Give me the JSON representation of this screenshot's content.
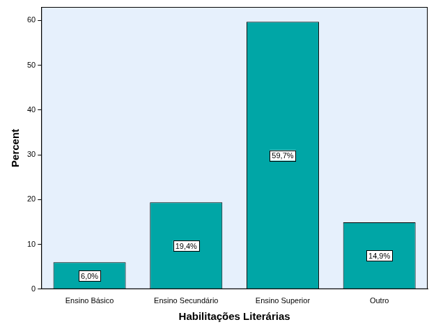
{
  "chart_data": {
    "type": "bar",
    "x_label": "Habilitações Literárias",
    "y_label": "Percent",
    "categories": [
      "Ensino Básico",
      "Ensino Secundário",
      "Ensino Superior",
      "Outro"
    ],
    "values": [
      6.0,
      19.4,
      59.7,
      14.9
    ],
    "value_labels": [
      "6,0%",
      "19,4%",
      "59,7%",
      "14,9%"
    ],
    "data_labels": true,
    "color": "#00a6a6",
    "ylim": [
      0,
      63
    ],
    "yticks": [
      0,
      10,
      20,
      30,
      40,
      50,
      60
    ],
    "grid": false
  }
}
